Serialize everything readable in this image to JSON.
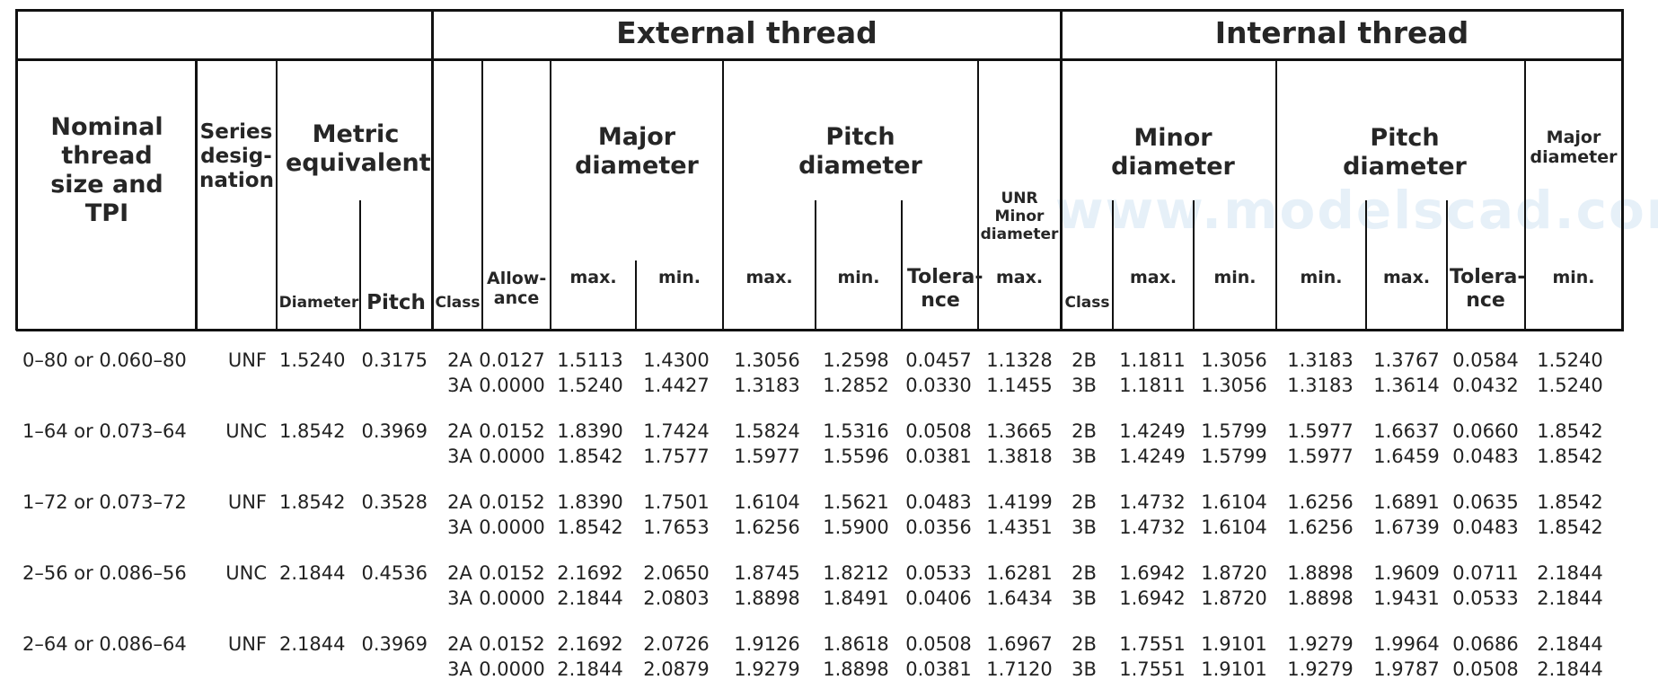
{
  "watermark": "www.modelscad.com",
  "groups": {
    "external": "External thread",
    "internal": "Internal thread"
  },
  "headers": {
    "nominal": "Nominal thread size and TPI",
    "series": "Series desig-nation",
    "metric": "Metric equivalent",
    "diameter": "Diameter",
    "pitch": "Pitch",
    "class": "Class",
    "allowance": "Allow-ance",
    "ext_major": "Major diameter",
    "ext_pitch": "Pitch diameter",
    "unr": "UNR Minor diameter",
    "int_minor": "Minor diameter",
    "int_pitch": "Pitch diameter",
    "int_major": "Major diameter",
    "max": "max.",
    "min": "min.",
    "tolerance": "Tolera-nce"
  },
  "rows": [
    {
      "nominal": "0–80 or 0.060–80",
      "series": "UNF",
      "dia": "1.5240",
      "pitch": "0.3175",
      "lines": [
        [
          "2A",
          "0.0127",
          "1.5113",
          "1.4300",
          "1.3056",
          "1.2598",
          "0.0457",
          "1.1328",
          "2B",
          "1.1811",
          "1.3056",
          "1.3183",
          "1.3767",
          "0.0584",
          "1.5240"
        ],
        [
          "3A",
          "0.0000",
          "1.5240",
          "1.4427",
          "1.3183",
          "1.2852",
          "0.0330",
          "1.1455",
          "3B",
          "1.1811",
          "1.3056",
          "1.3183",
          "1.3614",
          "0.0432",
          "1.5240"
        ]
      ]
    },
    {
      "nominal": "1–64 or 0.073–64",
      "series": "UNC",
      "dia": "1.8542",
      "pitch": "0.3969",
      "lines": [
        [
          "2A",
          "0.0152",
          "1.8390",
          "1.7424",
          "1.5824",
          "1.5316",
          "0.0508",
          "1.3665",
          "2B",
          "1.4249",
          "1.5799",
          "1.5977",
          "1.6637",
          "0.0660",
          "1.8542"
        ],
        [
          "3A",
          "0.0000",
          "1.8542",
          "1.7577",
          "1.5977",
          "1.5596",
          "0.0381",
          "1.3818",
          "3B",
          "1.4249",
          "1.5799",
          "1.5977",
          "1.6459",
          "0.0483",
          "1.8542"
        ]
      ]
    },
    {
      "nominal": "1–72 or 0.073–72",
      "series": "UNF",
      "dia": "1.8542",
      "pitch": "0.3528",
      "lines": [
        [
          "2A",
          "0.0152",
          "1.8390",
          "1.7501",
          "1.6104",
          "1.5621",
          "0.0483",
          "1.4199",
          "2B",
          "1.4732",
          "1.6104",
          "1.6256",
          "1.6891",
          "0.0635",
          "1.8542"
        ],
        [
          "3A",
          "0.0000",
          "1.8542",
          "1.7653",
          "1.6256",
          "1.5900",
          "0.0356",
          "1.4351",
          "3B",
          "1.4732",
          "1.6104",
          "1.6256",
          "1.6739",
          "0.0483",
          "1.8542"
        ]
      ]
    },
    {
      "nominal": "2–56 or 0.086–56",
      "series": "UNC",
      "dia": "2.1844",
      "pitch": "0.4536",
      "lines": [
        [
          "2A",
          "0.0152",
          "2.1692",
          "2.0650",
          "1.8745",
          "1.8212",
          "0.0533",
          "1.6281",
          "2B",
          "1.6942",
          "1.8720",
          "1.8898",
          "1.9609",
          "0.0711",
          "2.1844"
        ],
        [
          "3A",
          "0.0000",
          "2.1844",
          "2.0803",
          "1.8898",
          "1.8491",
          "0.0406",
          "1.6434",
          "3B",
          "1.6942",
          "1.8720",
          "1.8898",
          "1.9431",
          "0.0533",
          "2.1844"
        ]
      ]
    },
    {
      "nominal": "2–64 or 0.086–64",
      "series": "UNF",
      "dia": "2.1844",
      "pitch": "0.3969",
      "lines": [
        [
          "2A",
          "0.0152",
          "2.1692",
          "2.0726",
          "1.9126",
          "1.8618",
          "0.0508",
          "1.6967",
          "2B",
          "1.7551",
          "1.9101",
          "1.9279",
          "1.9964",
          "0.0686",
          "2.1844"
        ],
        [
          "3A",
          "0.0000",
          "2.1844",
          "2.0879",
          "1.9279",
          "1.8898",
          "0.0381",
          "1.7120",
          "3B",
          "1.7551",
          "1.9101",
          "1.9279",
          "1.9787",
          "0.0508",
          "2.1844"
        ]
      ]
    }
  ]
}
